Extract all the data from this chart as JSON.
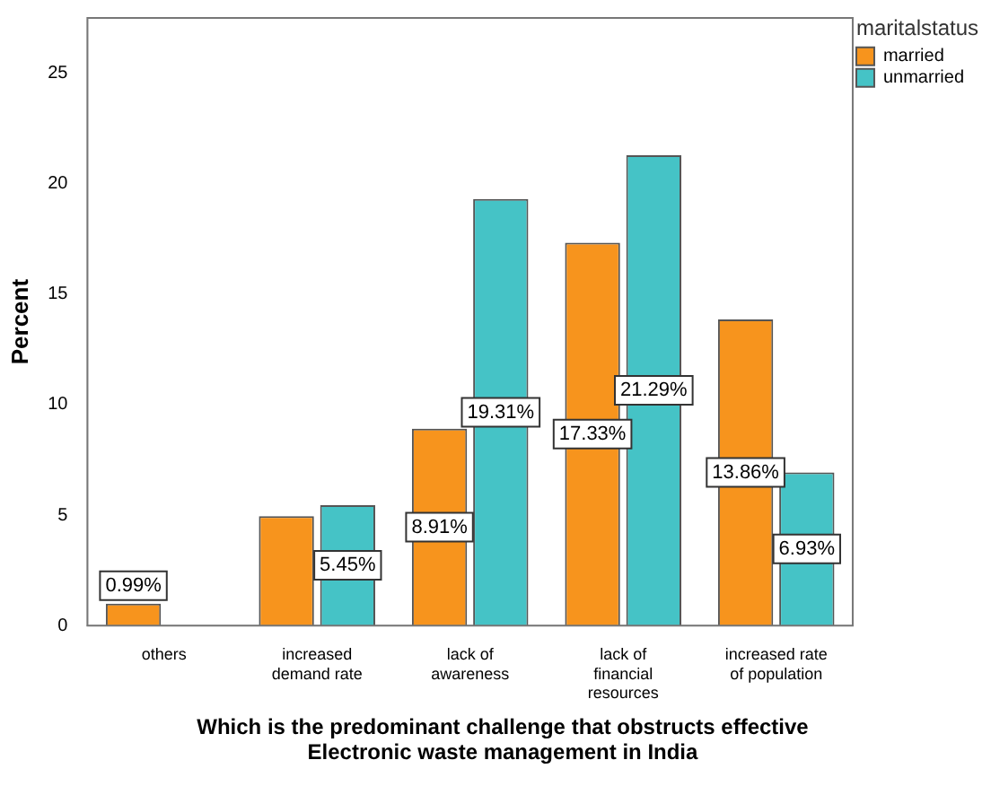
{
  "chart_data": {
    "type": "bar",
    "xlabel": "Which is the predominant challenge that obstructs effective Electronic waste management in India",
    "ylabel": "Percent",
    "legend_title": "maritalstatus",
    "legend": "top right",
    "categories": [
      "others",
      "increased demand rate",
      "lack of awareness",
      "lack of financial resources",
      "increased rate of population"
    ],
    "series": [
      {
        "name": "married",
        "color": "#f7941d",
        "values": [
          0.99,
          4.95,
          8.91,
          17.33,
          13.86
        ],
        "value_labels": [
          "0.99%",
          null,
          "8.91%",
          "17.33%",
          "13.86%"
        ]
      },
      {
        "name": "unmarried",
        "color": "#45c3c6",
        "values": [
          null,
          5.45,
          19.31,
          21.29,
          6.93
        ],
        "value_labels": [
          null,
          "5.45%",
          "19.31%",
          "21.29%",
          "6.93%"
        ]
      }
    ],
    "ylim": [
      0,
      27.5
    ],
    "yticks": [
      0,
      5,
      10,
      15,
      20,
      25
    ],
    "grid": false
  }
}
